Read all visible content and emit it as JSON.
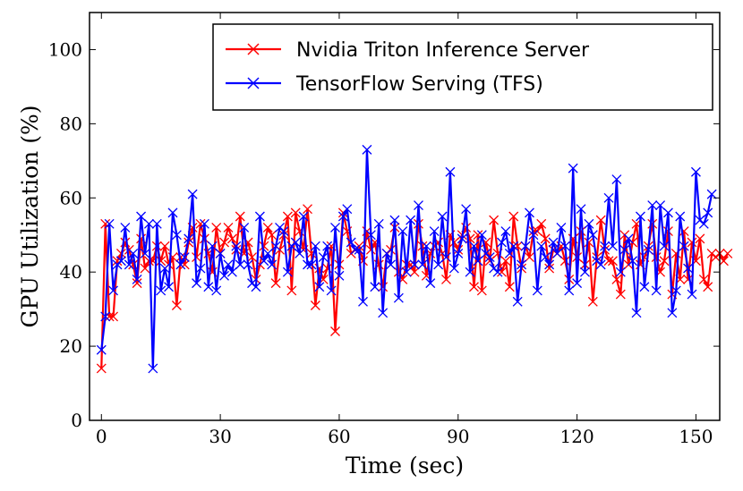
{
  "chart_data": {
    "type": "line",
    "title": "",
    "xlabel": "Time (sec)",
    "ylabel": "GPU Utilization (%)",
    "xlim": [
      -3,
      156
    ],
    "ylim": [
      0,
      110
    ],
    "xticks": [
      0,
      30,
      60,
      90,
      120,
      150
    ],
    "yticks": [
      0,
      20,
      40,
      60,
      80,
      100
    ],
    "grid": false,
    "legend_position": "top-right",
    "series": [
      {
        "name": "Nvidia Triton Inference Server",
        "color": "#ff0000",
        "marker": "x",
        "values": [
          14,
          53,
          28,
          28,
          43,
          45,
          48,
          46,
          42,
          37,
          49,
          41,
          43,
          43,
          47,
          43,
          47,
          42,
          44,
          31,
          44,
          42,
          48,
          52,
          44,
          53,
          49,
          45,
          40,
          52,
          45,
          48,
          52,
          49,
          46,
          55,
          45,
          48,
          44,
          38,
          42,
          47,
          52,
          50,
          37,
          46,
          50,
          55,
          35,
          56,
          51,
          46,
          57,
          45,
          31,
          41,
          38,
          41,
          47,
          24,
          42,
          56,
          51,
          45,
          46,
          47,
          43,
          51,
          46,
          48,
          42,
          36,
          45,
          46,
          52,
          40,
          38,
          42,
          42,
          40,
          53,
          47,
          39,
          45,
          47,
          48,
          45,
          38,
          50,
          48,
          46,
          50,
          52,
          49,
          36,
          50,
          35,
          48,
          43,
          54,
          45,
          40,
          43,
          36,
          55,
          47,
          41,
          47,
          44,
          51,
          51,
          53,
          49,
          41,
          46,
          45,
          47,
          43,
          38,
          49,
          44,
          51,
          42,
          48,
          32,
          44,
          54,
          46,
          43,
          43,
          38,
          34,
          50,
          42,
          48,
          53,
          42,
          44,
          47,
          53,
          44,
          40,
          43,
          51,
          34,
          45,
          38,
          51,
          38,
          48,
          43,
          49,
          38,
          36,
          45,
          44,
          45,
          43,
          45
        ]
      },
      {
        "name": "TensorFlow Serving (TFS)",
        "color": "#0000ff",
        "marker": "x",
        "values": [
          19,
          28,
          53,
          35,
          42,
          43,
          52,
          42,
          45,
          38,
          55,
          45,
          53,
          14,
          53,
          35,
          41,
          36,
          56,
          50,
          42,
          44,
          49,
          61,
          37,
          41,
          53,
          36,
          47,
          35,
          45,
          39,
          42,
          40,
          47,
          42,
          52,
          42,
          37,
          36,
          55,
          43,
          45,
          42,
          47,
          52,
          51,
          40,
          47,
          48,
          45,
          55,
          42,
          42,
          47,
          36,
          44,
          47,
          35,
          52,
          39,
          55,
          57,
          48,
          46,
          46,
          32,
          73,
          50,
          36,
          53,
          29,
          45,
          42,
          54,
          33,
          51,
          40,
          54,
          42,
          58,
          42,
          47,
          37,
          51,
          42,
          55,
          44,
          67,
          41,
          45,
          49,
          57,
          40,
          47,
          43,
          50,
          45,
          44,
          41,
          40,
          48,
          51,
          45,
          47,
          32,
          42,
          47,
          56,
          50,
          35,
          47,
          44,
          42,
          48,
          45,
          52,
          47,
          35,
          68,
          37,
          57,
          40,
          53,
          50,
          43,
          42,
          47,
          60,
          47,
          65,
          40,
          46,
          49,
          43,
          29,
          55,
          36,
          46,
          58,
          35,
          58,
          47,
          56,
          29,
          35,
          55,
          47,
          41,
          34,
          67,
          54,
          53,
          56,
          61
        ]
      }
    ]
  }
}
